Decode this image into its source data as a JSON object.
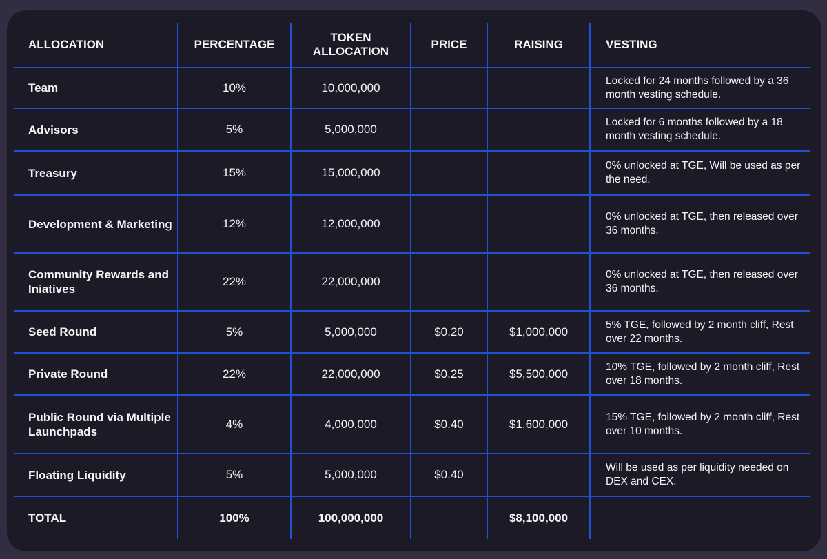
{
  "headers": {
    "allocation": "ALLOCATION",
    "percentage": "PERCENTAGE",
    "token_line1": "TOKEN",
    "token_line2": "ALLOCATION",
    "price": "PRICE",
    "raising": "RAISING",
    "vesting": "VESTING"
  },
  "rows": [
    {
      "name": "Team",
      "percentage": "10%",
      "tokens": "10,000,000",
      "price": "",
      "raising": "",
      "vesting": "Locked for 24 months followed by a 36 month vesting schedule."
    },
    {
      "name": "Advisors",
      "percentage": "5%",
      "tokens": "5,000,000",
      "price": "",
      "raising": "",
      "vesting": "Locked for 6 months followed by a 18 month vesting schedule."
    },
    {
      "name": "Treasury",
      "percentage": "15%",
      "tokens": "15,000,000",
      "price": "",
      "raising": "",
      "vesting": "0% unlocked at TGE, Will be used as per the need."
    },
    {
      "name": "Development & Marketing",
      "percentage": "12%",
      "tokens": "12,000,000",
      "price": "",
      "raising": "",
      "vesting": "0% unlocked at TGE, then released over 36 months."
    },
    {
      "name": "Community Rewards and Iniatives",
      "percentage": "22%",
      "tokens": "22,000,000",
      "price": "",
      "raising": "",
      "vesting": "0% unlocked at TGE, then released over 36 months."
    },
    {
      "name": "Seed Round",
      "percentage": "5%",
      "tokens": "5,000,000",
      "price": "$0.20",
      "raising": "$1,000,000",
      "vesting": "5% TGE, followed by 2 month cliff, Rest over 22 months."
    },
    {
      "name": "Private Round",
      "percentage": "22%",
      "tokens": "22,000,000",
      "price": "$0.25",
      "raising": "$5,500,000",
      "vesting": "10% TGE, followed by 2 month cliff, Rest over 18 months."
    },
    {
      "name": "Public Round via Multiple Launchpads",
      "percentage": "4%",
      "tokens": "4,000,000",
      "price": "$0.40",
      "raising": "$1,600,000",
      "vesting": "15% TGE, followed by 2 month cliff, Rest over 10 months."
    },
    {
      "name": "Floating Liquidity",
      "percentage": "5%",
      "tokens": "5,000,000",
      "price": "$0.40",
      "raising": "",
      "vesting": "Will be used as per liquidity needed on DEX and CEX."
    }
  ],
  "total": {
    "name": "TOTAL",
    "percentage": "100%",
    "tokens": "100,000,000",
    "price": "",
    "raising": "$8,100,000",
    "vesting": ""
  },
  "colors": {
    "background": "#322d40",
    "card": "#1c1a26",
    "grid_lines": "#1f52d0",
    "text": "#f4f4f6"
  }
}
